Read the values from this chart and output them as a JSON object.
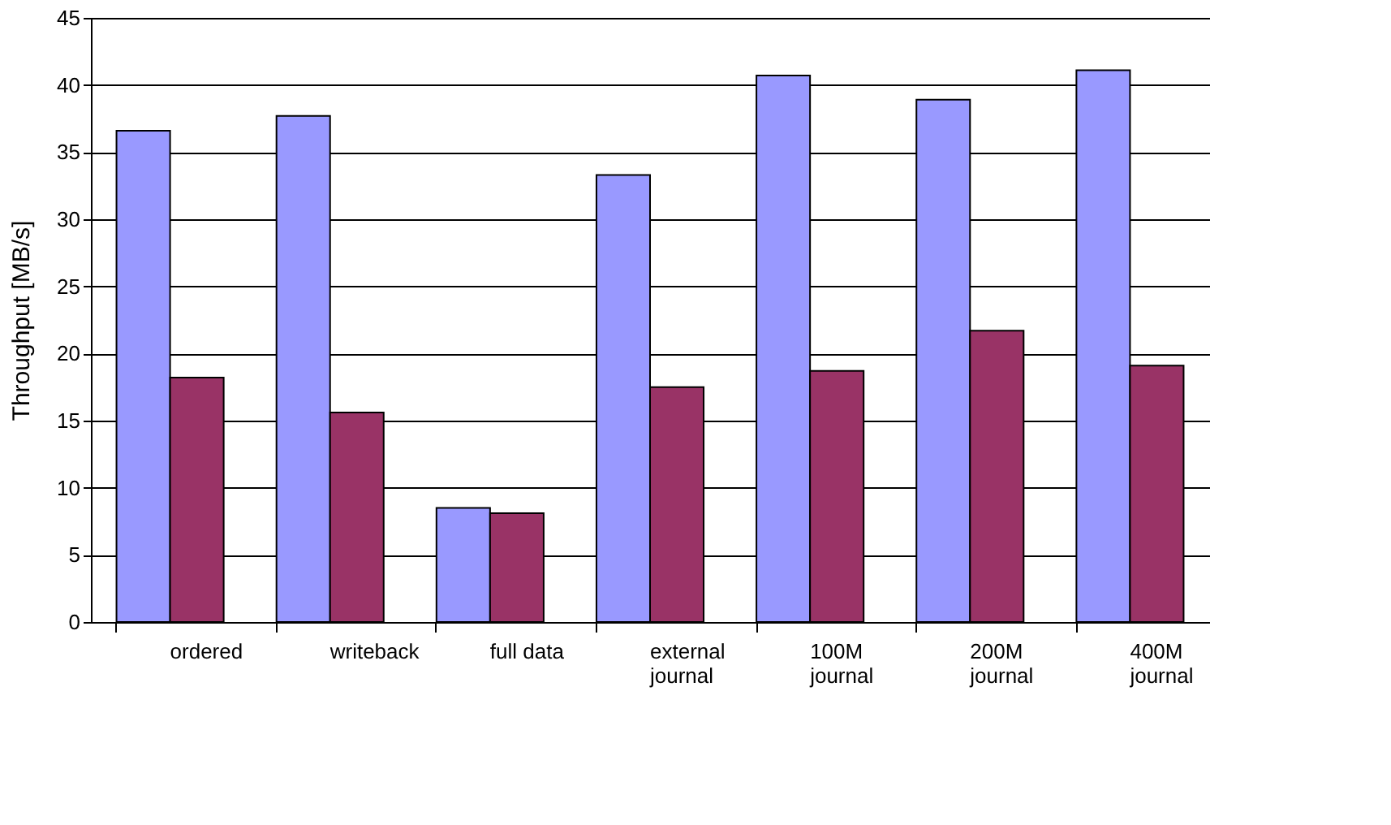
{
  "chart_data": {
    "type": "bar",
    "ylabel": "Throughput [MB/s]",
    "categories": [
      "ordered",
      "writeback",
      "full data",
      "external\njournal",
      "100M\njournal",
      "200M\njournal",
      "400M\njournal"
    ],
    "series": [
      {
        "color": "#9999ff",
        "values": [
          36.6,
          37.7,
          8.5,
          33.3,
          40.7,
          38.9,
          41.1
        ]
      },
      {
        "color": "#993366",
        "values": [
          18.2,
          15.6,
          8.1,
          17.5,
          18.7,
          21.7,
          19.1
        ]
      }
    ],
    "ylim": [
      0,
      45
    ],
    "yticks": [
      0,
      5,
      10,
      15,
      20,
      25,
      30,
      35,
      40,
      45
    ],
    "grid": "y",
    "legend": false
  }
}
